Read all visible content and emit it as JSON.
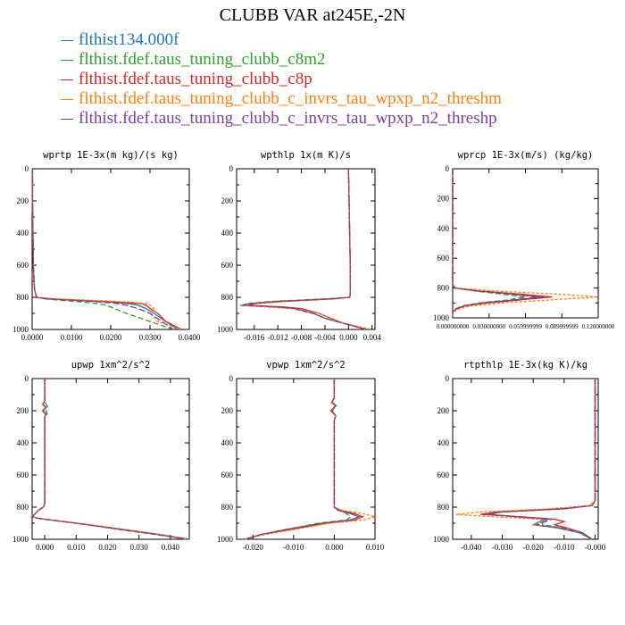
{
  "title": "CLUBB VAR at245E,-2N",
  "legend": [
    {
      "label": "flthist134.000f",
      "color": "#1f77b4"
    },
    {
      "label": "flthist.fdef.taus_tuning_clubb_c8m2",
      "color": "#2ca02c"
    },
    {
      "label": "flthist.fdef.taus_tuning_clubb_c8p",
      "color": "#d62728"
    },
    {
      "label": "flthist.fdef.taus_tuning_clubb_c_invrs_tau_wpxp_n2_threshm",
      "color": "#ff7f0e"
    },
    {
      "label": "flthist.fdef.taus_tuning_clubb_c_invrs_tau_wpxp_n2_threshp",
      "color": "#7b3fa0"
    }
  ],
  "chart_data": [
    {
      "type": "line",
      "title": "wprtp  1E-3x(m kg)/(s kg)",
      "xlim": [
        0,
        0.04
      ],
      "ylim": [
        1000,
        0
      ],
      "xticks": [
        0,
        0.01,
        0.02,
        0.03,
        0.04
      ],
      "xtick_labels": [
        "0.0000",
        "0.0100",
        "0.0200",
        "0.0300",
        "0.0400"
      ],
      "yticks": [
        0,
        200,
        400,
        600,
        800,
        1000
      ],
      "ytick_labels": [
        "0",
        "200",
        "400",
        "600",
        "800",
        "1000"
      ],
      "y": [
        0,
        200,
        400,
        600,
        750,
        790,
        800,
        810,
        820,
        830,
        840,
        850,
        870,
        900,
        950,
        1000
      ],
      "series": [
        {
          "values": [
            0.0001,
            0.0001,
            0.0002,
            0.0003,
            0.0006,
            0.001,
            0.0012,
            0.004,
            0.012,
            0.02,
            0.025,
            0.027,
            0.029,
            0.031,
            0.034,
            0.037
          ]
        },
        {
          "values": [
            0.0001,
            0.0001,
            0.0002,
            0.0003,
            0.0006,
            0.001,
            0.0012,
            0.0035,
            0.008,
            0.013,
            0.017,
            0.019,
            0.021,
            0.024,
            0.03,
            0.036
          ]
        },
        {
          "values": [
            0.0001,
            0.0001,
            0.0002,
            0.0003,
            0.0006,
            0.001,
            0.0012,
            0.005,
            0.014,
            0.022,
            0.028,
            0.029,
            0.03,
            0.032,
            0.034,
            0.038
          ]
        },
        {
          "values": [
            0.0001,
            0.0001,
            0.0002,
            0.0003,
            0.0006,
            0.001,
            0.0014,
            0.006,
            0.017,
            0.025,
            0.029,
            0.03,
            0.031,
            0.03,
            0.032,
            0.038
          ]
        },
        {
          "values": [
            0.0001,
            0.0001,
            0.0002,
            0.0003,
            0.0006,
            0.001,
            0.0012,
            0.004,
            0.011,
            0.018,
            0.022,
            0.024,
            0.027,
            0.03,
            0.033,
            0.036
          ]
        }
      ]
    },
    {
      "type": "line",
      "title": "wpthlp  1x(m K)/s",
      "xlim": [
        -0.019,
        0.0045
      ],
      "ylim": [
        1000,
        0
      ],
      "xticks": [
        -0.016,
        -0.012,
        -0.008,
        -0.004,
        0,
        0.004
      ],
      "xtick_labels": [
        "-0.016",
        "-0.012",
        "-0.008",
        "-0.004",
        "0.000",
        "0.004"
      ],
      "yticks": [
        0,
        200,
        400,
        600,
        800,
        1000
      ],
      "ytick_labels": [
        "0",
        "200",
        "400",
        "600",
        "800",
        "1000"
      ],
      "y": [
        0,
        200,
        400,
        600,
        780,
        800,
        810,
        825,
        840,
        850,
        860,
        870,
        880,
        900,
        930,
        960,
        1000
      ],
      "series": [
        {
          "values": [
            0,
            0.0001,
            0.0002,
            0.0003,
            0.0003,
            0.0002,
            -0.003,
            -0.012,
            -0.017,
            -0.018,
            -0.012,
            -0.009,
            -0.008,
            -0.006,
            -0.004,
            -0.001,
            0.003
          ]
        },
        {
          "values": [
            0,
            0.0001,
            0.0002,
            0.0003,
            0.0003,
            0.0002,
            -0.004,
            -0.013,
            -0.0175,
            -0.018,
            -0.012,
            -0.009,
            -0.0085,
            -0.006,
            -0.004,
            -0.001,
            0.003
          ]
        },
        {
          "values": [
            0,
            0.0001,
            0.0002,
            0.0003,
            0.0003,
            0.0002,
            -0.003,
            -0.011,
            -0.016,
            -0.017,
            -0.011,
            -0.008,
            -0.007,
            -0.005,
            -0.003,
            -0.001,
            0.003
          ]
        },
        {
          "values": [
            0,
            0.0001,
            0.0002,
            0.0003,
            0.0003,
            0.0002,
            -0.002,
            -0.01,
            -0.017,
            -0.0185,
            -0.014,
            -0.01,
            -0.008,
            -0.005,
            -0.003,
            -0.001,
            0.004
          ]
        },
        {
          "values": [
            0,
            0.0001,
            0.0002,
            0.0003,
            0.0003,
            0.0002,
            -0.003,
            -0.012,
            -0.017,
            -0.018,
            -0.012,
            -0.009,
            -0.008,
            -0.006,
            -0.004,
            -0.001,
            0.003
          ]
        }
      ]
    },
    {
      "type": "line",
      "title": "wprcp  1E-3x(m/s) (kg/kg)",
      "xlim": [
        0,
        0.12
      ],
      "ylim": [
        1000,
        0
      ],
      "xticks": [
        0,
        0.03,
        0.06,
        0.09,
        0.12
      ],
      "xtick_labels": [
        "0.000000000",
        "0.030000000",
        "0.059999999",
        "0.089999999",
        "0.120000000"
      ],
      "yticks": [
        0,
        200,
        400,
        600,
        800,
        1000
      ],
      "ytick_labels": [
        "0",
        "200",
        "400",
        "600",
        "800",
        "1000"
      ],
      "y": [
        0,
        200,
        400,
        600,
        780,
        800,
        820,
        840,
        860,
        880,
        900,
        920,
        940,
        960,
        1000
      ],
      "series": [
        {
          "values": [
            0,
            0,
            0,
            0,
            0,
            0.002,
            0.02,
            0.05,
            0.075,
            0.05,
            0.025,
            0.01,
            0.003,
            0,
            0
          ]
        },
        {
          "values": [
            0,
            0,
            0,
            0,
            0,
            0.002,
            0.018,
            0.04,
            0.06,
            0.045,
            0.022,
            0.008,
            0.002,
            0,
            0
          ]
        },
        {
          "values": [
            0,
            0,
            0,
            0,
            0,
            0.002,
            0.022,
            0.055,
            0.082,
            0.055,
            0.028,
            0.01,
            0.003,
            0,
            0
          ]
        },
        {
          "values": [
            0,
            0,
            0,
            0,
            0,
            0.004,
            0.035,
            0.085,
            0.12,
            0.08,
            0.04,
            0.015,
            0.005,
            0,
            0
          ]
        },
        {
          "values": [
            0,
            0,
            0,
            0,
            0,
            0.002,
            0.02,
            0.048,
            0.07,
            0.05,
            0.024,
            0.009,
            0.003,
            0,
            0
          ]
        }
      ]
    },
    {
      "type": "line",
      "title": "upwp  1xm^2/s^2",
      "xlim": [
        -0.004,
        0.046
      ],
      "ylim": [
        1000,
        0
      ],
      "xticks": [
        0,
        0.01,
        0.02,
        0.03,
        0.04
      ],
      "xtick_labels": [
        "0.000",
        "0.010",
        "0.020",
        "0.030",
        "0.040"
      ],
      "yticks": [
        0,
        200,
        400,
        600,
        800,
        1000
      ],
      "ytick_labels": [
        "0",
        "200",
        "400",
        "600",
        "800",
        "1000"
      ],
      "y": [
        0,
        140,
        160,
        180,
        200,
        220,
        240,
        300,
        400,
        600,
        780,
        800,
        820,
        840,
        860,
        870,
        900,
        940,
        970,
        1000
      ],
      "series": [
        {
          "values": [
            0,
            0,
            -0.0005,
            0.0005,
            -0.0005,
            0.0005,
            0,
            0,
            0,
            0,
            0,
            -0.0005,
            -0.002,
            -0.003,
            -0.004,
            -0.002,
            0.01,
            0.025,
            0.036,
            0.046
          ]
        },
        {
          "values": [
            0,
            0,
            0.0005,
            0.001,
            0.0005,
            0.0008,
            0,
            0,
            0,
            0,
            0,
            -0.0005,
            -0.002,
            -0.003,
            -0.004,
            -0.002,
            0.01,
            0.024,
            0.035,
            0.045
          ]
        },
        {
          "values": [
            0,
            0,
            -0.0007,
            0.0004,
            -0.0008,
            0.0003,
            0,
            0,
            0,
            0,
            0,
            -0.0005,
            -0.002,
            -0.003,
            -0.004,
            -0.002,
            0.01,
            0.025,
            0.036,
            0.046
          ]
        },
        {
          "values": [
            0,
            0,
            -0.0008,
            0.0003,
            -0.0008,
            0.0003,
            0,
            0,
            0,
            0,
            0,
            -0.0005,
            -0.002,
            -0.003,
            -0.0042,
            -0.002,
            0.011,
            0.026,
            0.037,
            0.046
          ]
        },
        {
          "values": [
            0,
            0,
            -0.0006,
            0.0005,
            -0.0006,
            0.0004,
            0,
            0,
            0,
            0,
            0,
            -0.0005,
            -0.002,
            -0.003,
            -0.004,
            -0.002,
            0.01,
            0.025,
            0.036,
            0.046
          ]
        }
      ]
    },
    {
      "type": "line",
      "title": "vpwp  1xm^2/s^2",
      "xlim": [
        -0.024,
        0.01
      ],
      "ylim": [
        1000,
        0
      ],
      "xticks": [
        -0.02,
        -0.01,
        0,
        0.01
      ],
      "xtick_labels": [
        "-0.020",
        "-0.010",
        "0.000",
        "0.010"
      ],
      "yticks": [
        0,
        200,
        400,
        600,
        800,
        1000
      ],
      "ytick_labels": [
        "0",
        "200",
        "400",
        "600",
        "800",
        "1000"
      ],
      "y": [
        0,
        120,
        150,
        170,
        200,
        230,
        260,
        300,
        400,
        600,
        800,
        820,
        840,
        860,
        880,
        900,
        940,
        970,
        1000
      ],
      "series": [
        {
          "values": [
            0,
            0,
            -0.0006,
            0.0004,
            -0.0008,
            0.0004,
            0,
            0,
            0,
            0,
            0,
            0.001,
            0.004,
            0.006,
            0.004,
            -0.003,
            -0.012,
            -0.018,
            -0.022
          ]
        },
        {
          "values": [
            0,
            0,
            -0.0004,
            0.0005,
            -0.0005,
            0.0003,
            0,
            0,
            0,
            0,
            0,
            0.001,
            0.003,
            0.004,
            0.003,
            -0.004,
            -0.012,
            -0.018,
            -0.022
          ]
        },
        {
          "values": [
            0,
            0,
            -0.0007,
            0.0003,
            -0.0009,
            0.0003,
            0,
            0,
            0,
            0,
            0,
            0.0015,
            0.005,
            0.007,
            0.005,
            -0.002,
            -0.011,
            -0.018,
            -0.022
          ]
        },
        {
          "values": [
            0,
            0,
            -0.0008,
            0.0003,
            -0.0009,
            0.0003,
            0,
            0,
            0,
            0,
            0,
            0.002,
            0.007,
            0.01,
            0.007,
            -0.001,
            -0.01,
            -0.017,
            -0.022
          ]
        },
        {
          "values": [
            0,
            0,
            -0.0006,
            0.0004,
            -0.0007,
            0.0004,
            0,
            0,
            0,
            0,
            0,
            0.001,
            0.004,
            0.006,
            0.004,
            -0.003,
            -0.012,
            -0.018,
            -0.022
          ]
        }
      ]
    },
    {
      "type": "line",
      "title": "rtpthlp  1E-3x(kg K)/kg",
      "xlim": [
        -0.046,
        0.001
      ],
      "ylim": [
        1000,
        0
      ],
      "xticks": [
        -0.04,
        -0.03,
        -0.02,
        -0.01,
        0
      ],
      "xtick_labels": [
        "-0.040",
        "-0.030",
        "-0.020",
        "-0.010",
        "-0.000"
      ],
      "yticks": [
        0,
        200,
        400,
        600,
        800,
        1000
      ],
      "ytick_labels": [
        "0",
        "200",
        "400",
        "600",
        "800",
        "1000"
      ],
      "y": [
        0,
        200,
        400,
        600,
        760,
        790,
        810,
        830,
        845,
        860,
        875,
        890,
        910,
        930,
        960,
        1000
      ],
      "series": [
        {
          "values": [
            0,
            0,
            0,
            0,
            0,
            -0.001,
            -0.01,
            -0.03,
            -0.035,
            -0.025,
            -0.015,
            -0.018,
            -0.02,
            -0.012,
            -0.005,
            -0.001
          ]
        },
        {
          "values": [
            0,
            0,
            0,
            0,
            0,
            -0.001,
            -0.01,
            -0.03,
            -0.034,
            -0.025,
            -0.016,
            -0.017,
            -0.017,
            -0.01,
            -0.004,
            -0.001
          ]
        },
        {
          "values": [
            0,
            0,
            0,
            0,
            0,
            -0.001,
            -0.011,
            -0.032,
            -0.037,
            -0.024,
            -0.013,
            -0.01,
            -0.013,
            -0.009,
            -0.004,
            -0.001
          ]
        },
        {
          "values": [
            0,
            0,
            0,
            0,
            0,
            -0.002,
            -0.015,
            -0.037,
            -0.045,
            -0.033,
            -0.018,
            -0.016,
            -0.02,
            -0.011,
            -0.004,
            -0.001
          ]
        },
        {
          "values": [
            0,
            0,
            0,
            0,
            0,
            -0.001,
            -0.01,
            -0.03,
            -0.035,
            -0.025,
            -0.014,
            -0.016,
            -0.019,
            -0.011,
            -0.004,
            -0.001
          ]
        }
      ]
    }
  ]
}
